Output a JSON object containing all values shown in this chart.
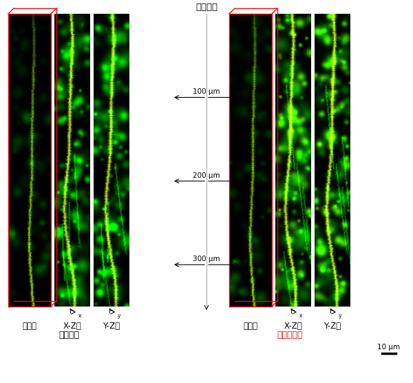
{
  "title_top": "試料表面",
  "label_100": "100 μm",
  "label_200": "200 μm",
  "label_300": "300 μm",
  "label_scale": "10 μm",
  "left_labels": [
    "立体図",
    "X-Z面",
    "Y-Z面"
  ],
  "left_subtitle": "従来手法",
  "right_labels": [
    "立体図",
    "X-Z面",
    "Y-Z面"
  ],
  "right_subtitle": "スパムナム",
  "right_subtitle_color": "#ff0000",
  "bg_color": "#ffffff",
  "image_bg": "#000000",
  "center_line_color": "#aaaaaa",
  "arrow_color": "#000000"
}
